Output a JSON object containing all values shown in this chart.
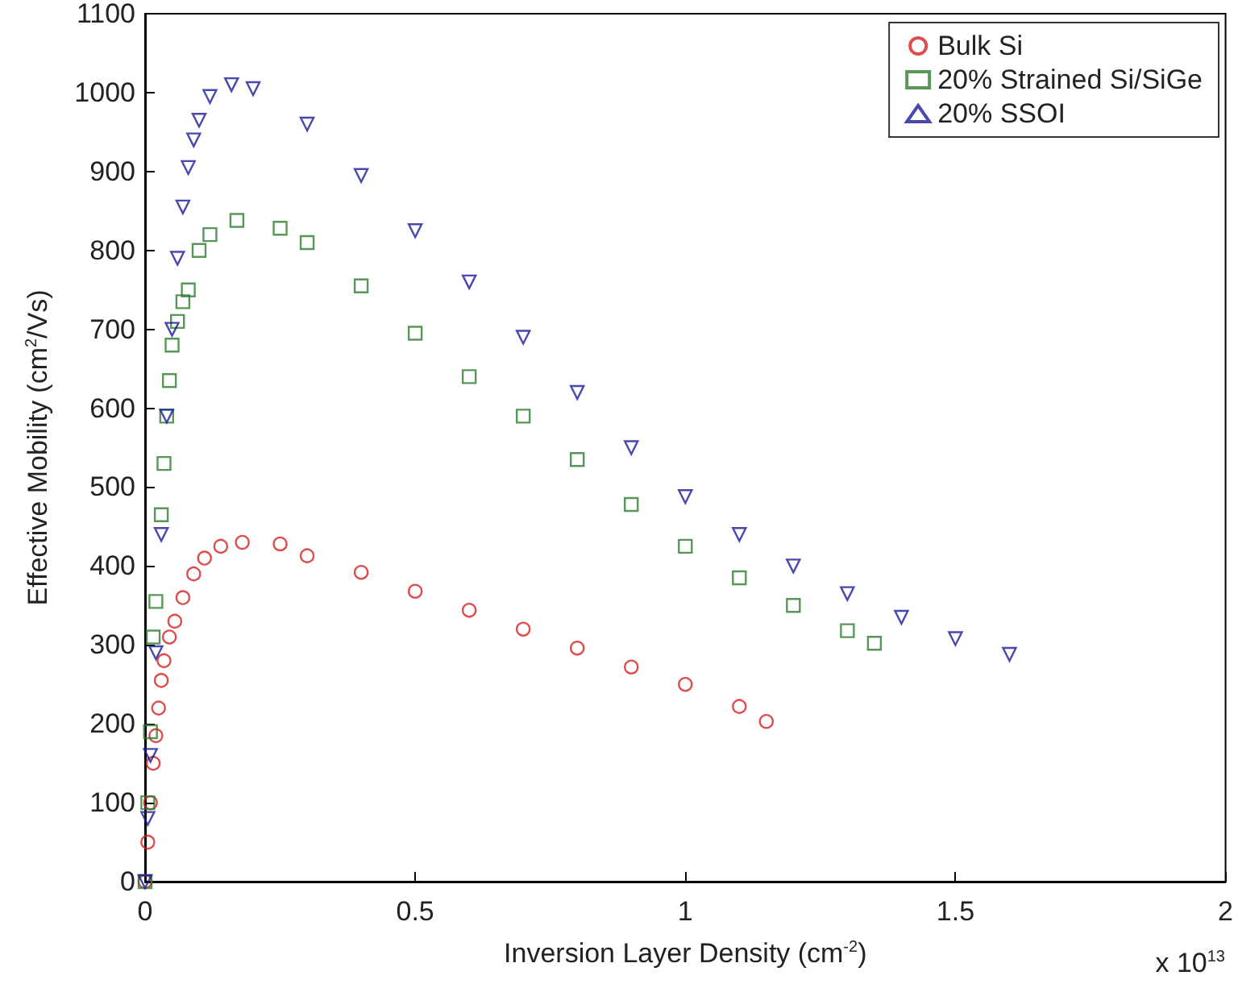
{
  "chart_data": {
    "type": "scatter",
    "xlabel": "Inversion Layer Density (cm$^{-2}$)",
    "ylabel": "Effective Mobility (cm$^{2}$/Vs)",
    "annotations": [
      "x 10$^{13}$"
    ],
    "xlim": [
      0,
      2
    ],
    "xticks": [
      0,
      0.5,
      1,
      1.5,
      2
    ],
    "ylim": [
      0,
      1100
    ],
    "yticks": [
      0,
      100,
      200,
      300,
      400,
      500,
      600,
      700,
      800,
      900,
      1000,
      1100
    ],
    "grid": false,
    "legend": "top right",
    "series": [
      {
        "name": "Bulk Si",
        "color": "#d42020",
        "marker": "circle",
        "x": [
          0,
          0.005,
          0.01,
          0.015,
          0.02,
          0.025,
          0.03,
          0.035,
          0.045,
          0.055,
          0.07,
          0.09,
          0.11,
          0.14,
          0.18,
          0.25,
          0.3,
          0.4,
          0.5,
          0.6,
          0.7,
          0.8,
          0.9,
          1.0,
          1.1,
          1.15
        ],
        "values": [
          0,
          50,
          100,
          150,
          185,
          220,
          255,
          280,
          310,
          330,
          360,
          390,
          410,
          425,
          430,
          428,
          413,
          392,
          368,
          344,
          320,
          296,
          272,
          250,
          222,
          203
        ]
      },
      {
        "name": "20% Strained Si/SiGe",
        "color": "#2e7d2e",
        "marker": "square",
        "x": [
          0,
          0.005,
          0.01,
          0.015,
          0.02,
          0.03,
          0.035,
          0.04,
          0.045,
          0.05,
          0.06,
          0.07,
          0.08,
          0.1,
          0.12,
          0.17,
          0.25,
          0.3,
          0.4,
          0.5,
          0.6,
          0.7,
          0.8,
          0.9,
          1.0,
          1.1,
          1.2,
          1.3,
          1.35
        ],
        "values": [
          0,
          100,
          190,
          310,
          355,
          465,
          530,
          590,
          635,
          680,
          710,
          735,
          750,
          800,
          820,
          838,
          828,
          810,
          755,
          695,
          640,
          590,
          535,
          478,
          425,
          385,
          350,
          318,
          302
        ]
      },
      {
        "name": "20% SSOI",
        "color": "#1a1a9a",
        "marker": "triangle",
        "x": [
          0,
          0.005,
          0.01,
          0.02,
          0.03,
          0.04,
          0.05,
          0.06,
          0.07,
          0.08,
          0.09,
          0.1,
          0.12,
          0.16,
          0.2,
          0.3,
          0.4,
          0.5,
          0.6,
          0.7,
          0.8,
          0.9,
          1.0,
          1.1,
          1.2,
          1.3,
          1.4,
          1.5,
          1.6
        ],
        "values": [
          0,
          80,
          160,
          290,
          440,
          590,
          700,
          790,
          855,
          905,
          940,
          965,
          995,
          1010,
          1005,
          960,
          895,
          825,
          760,
          690,
          620,
          550,
          488,
          440,
          400,
          365,
          335,
          308,
          288
        ]
      }
    ]
  }
}
